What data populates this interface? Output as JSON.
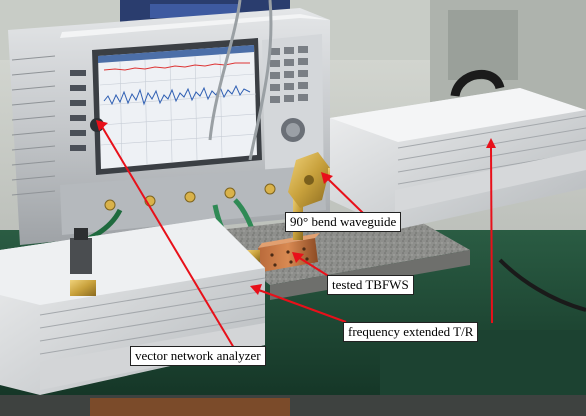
{
  "annotations": {
    "bend_waveguide": "90° bend waveguide",
    "tested_device": "tested TBFWS",
    "extender": "frequency extended T/R",
    "analyzer": "vector network analyzer"
  },
  "colors": {
    "pointer_line": "#e8101a",
    "label_background": "#ffffff",
    "instrument_body": "#c9ccce",
    "analyzer_screen": "#eef1f5",
    "waveguide_brass": "#c8a13c",
    "cable_green": "#2f8a55",
    "bench_green": "#1f4a35"
  }
}
